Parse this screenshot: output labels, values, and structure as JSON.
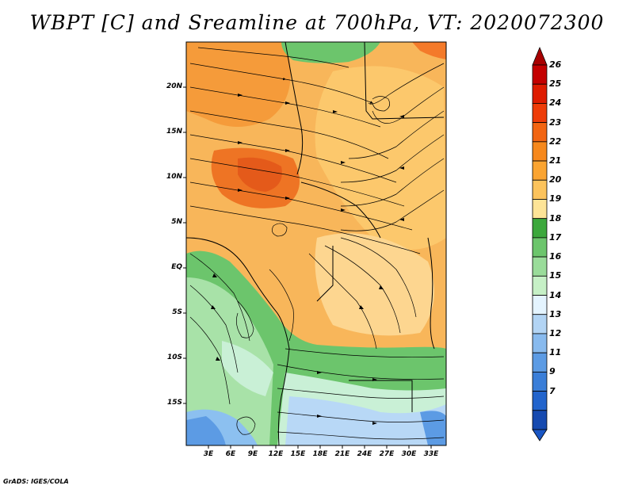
{
  "title": "WBPT [C] and Sreamline at 700hPa, VT: 2020072300",
  "credit": "GrADS: IGES/COLA",
  "map": {
    "lat_labels": [
      "20N",
      "15N",
      "10N",
      "5N",
      "EQ",
      "5S",
      "10S",
      "15S"
    ],
    "lon_labels": [
      "3E",
      "6E",
      "9E",
      "12E",
      "15E",
      "18E",
      "21E",
      "24E",
      "27E",
      "30E",
      "33E"
    ],
    "lat_range": [
      -20,
      24.5
    ],
    "lon_range": [
      0,
      35
    ]
  },
  "colorbar": {
    "labels": [
      "26",
      "25",
      "24",
      "23",
      "22",
      "21",
      "20",
      "19",
      "18",
      "17",
      "16",
      "15",
      "14",
      "13",
      "12",
      "11",
      "9",
      "7"
    ],
    "colors": [
      "#c40000",
      "#de1c00",
      "#ee3c08",
      "#f26512",
      "#f6881c",
      "#faa431",
      "#fcc35c",
      "#fde497",
      "#3ca83c",
      "#6cc56c",
      "#9adc9a",
      "#c6f0c6",
      "#e4f4ff",
      "#b2d4f4",
      "#88baee",
      "#5c9be4",
      "#3a7ed8",
      "#2264cc",
      "#164ab0"
    ],
    "top_color": "#a80000",
    "bottom_color": "#1a56c4"
  },
  "colors": {
    "ocean_cool": "#8cc0f0",
    "green_mid": "#6cc56c",
    "orange_main": "#f6b04a",
    "orange_deep": "#f07a24",
    "streamline": "#000000",
    "coast": "#000000"
  }
}
